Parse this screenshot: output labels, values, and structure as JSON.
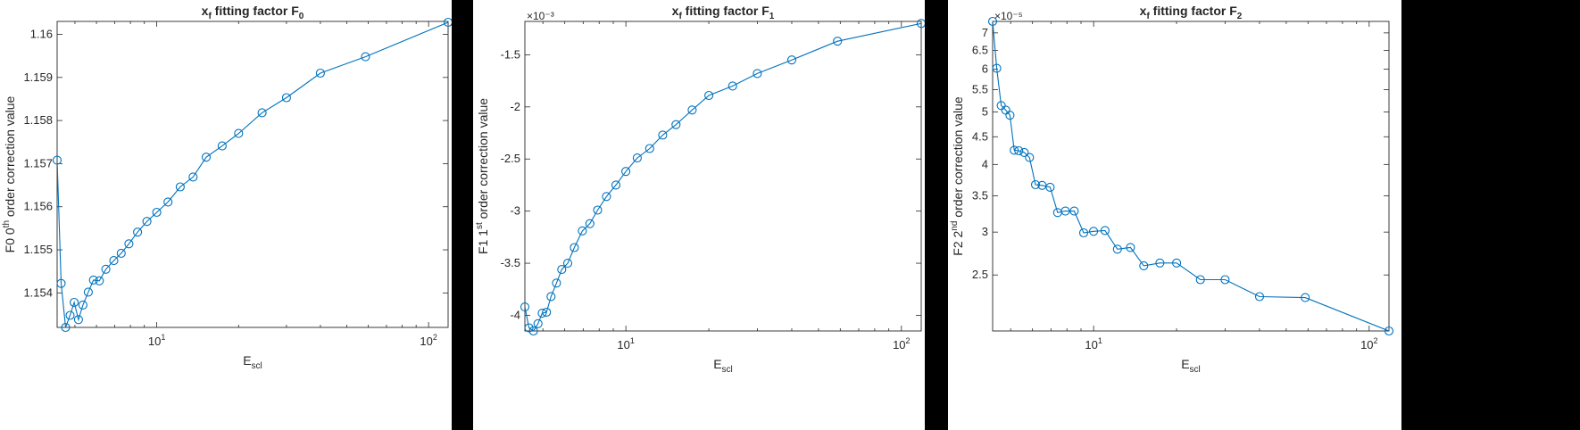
{
  "chart_data": [
    {
      "type": "line",
      "title": {
        "main": "x",
        "sub": "f",
        "rest": " fitting factor F",
        "rest_sub": "0"
      },
      "xlabel": {
        "main": "E",
        "sub": "scl"
      },
      "ylabel": {
        "pre": "F0 0",
        "sup": "th",
        "post": " order correction value"
      },
      "xscale": "log",
      "yscale": "linear",
      "xlim": [
        4.3,
        118
      ],
      "ylim": [
        1.1532,
        1.1603
      ],
      "xticks": [
        10,
        100
      ],
      "xtick_labels": [
        {
          "base": "10",
          "exp": "1"
        },
        {
          "base": "10",
          "exp": "2"
        }
      ],
      "yticks": [
        1.154,
        1.155,
        1.156,
        1.157,
        1.158,
        1.159,
        1.16
      ],
      "ytick_labels": [
        "1.154",
        "1.155",
        "1.156",
        "1.157",
        "1.158",
        "1.159",
        "1.16"
      ],
      "exponent_label": "",
      "grid": false,
      "legend": "none",
      "marker": "open-circle",
      "color": "#0072BD",
      "x": [
        4.3,
        4.45,
        4.62,
        4.8,
        4.97,
        5.15,
        5.35,
        5.6,
        5.85,
        6.15,
        6.5,
        6.95,
        7.4,
        7.9,
        8.5,
        9.2,
        10.0,
        11.0,
        12.2,
        13.6,
        15.2,
        17.4,
        20.0,
        24.4,
        30.0,
        40.0,
        58.6,
        118.0
      ],
      "y": [
        1.15708,
        1.15422,
        1.1532,
        1.15348,
        1.15378,
        1.15338,
        1.15372,
        1.15402,
        1.1543,
        1.15428,
        1.15455,
        1.15475,
        1.15492,
        1.15514,
        1.15541,
        1.15566,
        1.15587,
        1.15611,
        1.15646,
        1.15669,
        1.15715,
        1.15741,
        1.1577,
        1.15818,
        1.15853,
        1.1591,
        1.15948,
        1.16028
      ]
    },
    {
      "type": "line",
      "title": {
        "main": "x",
        "sub": "f",
        "rest": " fitting factor F",
        "rest_sub": "1"
      },
      "xlabel": {
        "main": "E",
        "sub": "scl"
      },
      "ylabel": {
        "pre": "F1 1",
        "sup": "st",
        "post": " order correction value"
      },
      "xscale": "log",
      "yscale": "linear",
      "xlim": [
        4.3,
        118
      ],
      "ylim": [
        -0.00415,
        -0.00118
      ],
      "xticks": [
        10,
        100
      ],
      "xtick_labels": [
        {
          "base": "10",
          "exp": "1"
        },
        {
          "base": "10",
          "exp": "2"
        }
      ],
      "yticks": [
        -0.004,
        -0.0035,
        -0.003,
        -0.0025,
        -0.002,
        -0.0015
      ],
      "ytick_labels": [
        "-4",
        "-3.5",
        "-3",
        "-2.5",
        "-2",
        "-1.5"
      ],
      "exponent_label": "×10⁻³",
      "grid": false,
      "legend": "none",
      "marker": "open-circle",
      "color": "#0072BD",
      "x": [
        4.3,
        4.45,
        4.62,
        4.8,
        4.97,
        5.15,
        5.35,
        5.6,
        5.85,
        6.15,
        6.5,
        6.95,
        7.4,
        7.9,
        8.5,
        9.2,
        10.0,
        11.0,
        12.2,
        13.6,
        15.2,
        17.4,
        20.0,
        24.4,
        30.0,
        40.0,
        58.6,
        118.0
      ],
      "y": [
        -0.00392,
        -0.00412,
        -0.00415,
        -0.00408,
        -0.00398,
        -0.00397,
        -0.00382,
        -0.00369,
        -0.00356,
        -0.0035,
        -0.00335,
        -0.00319,
        -0.00312,
        -0.00299,
        -0.00286,
        -0.00275,
        -0.00262,
        -0.00249,
        -0.0024,
        -0.00227,
        -0.00217,
        -0.00203,
        -0.00189,
        -0.0018,
        -0.00168,
        -0.00155,
        -0.00137,
        -0.0012
      ]
    },
    {
      "type": "line",
      "title": {
        "main": "x",
        "sub": "f",
        "rest": " fitting factor F",
        "rest_sub": "2"
      },
      "xlabel": {
        "main": "E",
        "sub": "scl"
      },
      "ylabel": {
        "pre": "F2 2",
        "sup": "nd",
        "post": " order correction value"
      },
      "xscale": "log",
      "yscale": "log",
      "xlim": [
        4.3,
        118
      ],
      "ylim": [
        1.97e-05,
        7.35e-05
      ],
      "xticks": [
        10,
        100
      ],
      "xtick_labels": [
        {
          "base": "10",
          "exp": "1"
        },
        {
          "base": "10",
          "exp": "2"
        }
      ],
      "yticks": [
        2.5e-05,
        3e-05,
        3.5e-05,
        4e-05,
        4.5e-05,
        5e-05,
        5.5e-05,
        6e-05,
        6.5e-05,
        7e-05
      ],
      "ytick_labels": [
        "2.5",
        "3",
        "3.5",
        "4",
        "4.5",
        "5",
        "5.5",
        "6",
        "6.5",
        "7"
      ],
      "exponent_label": "×10⁻⁵",
      "grid": false,
      "legend": "none",
      "marker": "open-circle",
      "color": "#0072BD",
      "x": [
        4.3,
        4.45,
        4.62,
        4.8,
        4.97,
        5.15,
        5.35,
        5.6,
        5.85,
        6.15,
        6.5,
        6.95,
        7.4,
        7.9,
        8.5,
        9.2,
        10.0,
        11.0,
        12.2,
        13.6,
        15.2,
        17.4,
        20.0,
        24.4,
        30.0,
        40.0,
        58.6,
        118.0
      ],
      "y": [
        7.35e-05,
        6.02e-05,
        5.14e-05,
        5.04e-05,
        4.93e-05,
        4.25e-05,
        4.24e-05,
        4.21e-05,
        4.12e-05,
        3.67e-05,
        3.66e-05,
        3.63e-05,
        3.26e-05,
        3.28e-05,
        3.28e-05,
        2.99e-05,
        3.01e-05,
        3.02e-05,
        2.79e-05,
        2.81e-05,
        2.6e-05,
        2.63e-05,
        2.63e-05,
        2.45e-05,
        2.45e-05,
        2.28e-05,
        2.27e-05,
        1.97e-05
      ]
    }
  ]
}
